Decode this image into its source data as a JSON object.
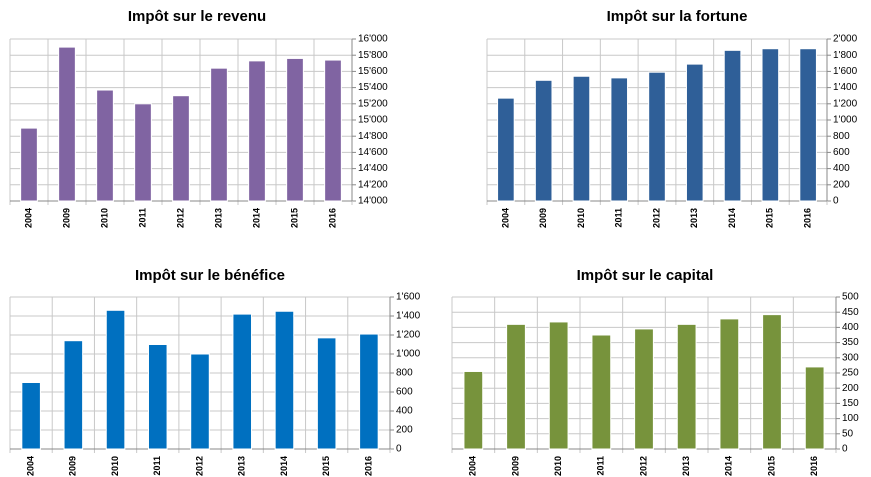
{
  "chart_data": [
    {
      "type": "bar",
      "title": "Impôt sur le revenu",
      "color": "#8064a2",
      "grid": true,
      "categories": [
        "2004",
        "2009",
        "2010",
        "2011",
        "2012",
        "2013",
        "2014",
        "2015",
        "2016"
      ],
      "values": [
        14900,
        15900,
        15370,
        15200,
        15300,
        15640,
        15730,
        15760,
        15740
      ],
      "ylim": [
        14000,
        16000
      ],
      "yticks": [
        {
          "value": 14000,
          "label": "14'000"
        },
        {
          "value": 14200,
          "label": "14'200"
        },
        {
          "value": 14400,
          "label": "14'400"
        },
        {
          "value": 14600,
          "label": "14'600"
        },
        {
          "value": 14800,
          "label": "14'800"
        },
        {
          "value": 15000,
          "label": "15'000"
        },
        {
          "value": 15200,
          "label": "15'200"
        },
        {
          "value": 15400,
          "label": "15'400"
        },
        {
          "value": 15600,
          "label": "15'600"
        },
        {
          "value": 15800,
          "label": "15'800"
        },
        {
          "value": 16000,
          "label": "16'000"
        }
      ]
    },
    {
      "type": "bar",
      "title": "Impôt sur la fortune",
      "color": "#2f5f98",
      "grid": true,
      "categories": [
        "2004",
        "2009",
        "2010",
        "2011",
        "2012",
        "2013",
        "2014",
        "2015",
        "2016"
      ],
      "values": [
        1270,
        1490,
        1540,
        1520,
        1590,
        1690,
        1860,
        1880,
        1880
      ],
      "ylim": [
        0,
        2000
      ],
      "yticks": [
        0,
        200,
        400,
        600,
        800,
        {
          "value": 1000,
          "label": "1'000"
        },
        {
          "value": 1200,
          "label": "1'200"
        },
        {
          "value": 1400,
          "label": "1'400"
        },
        {
          "value": 1600,
          "label": "1'600"
        },
        {
          "value": 1800,
          "label": "1'800"
        },
        {
          "value": 2000,
          "label": "2'000"
        }
      ]
    },
    {
      "type": "bar",
      "title": "Impôt sur le bénéfice",
      "color": "#0070c0",
      "grid": true,
      "categories": [
        "2004",
        "2009",
        "2010",
        "2011",
        "2012",
        "2013",
        "2014",
        "2015",
        "2016"
      ],
      "values": [
        700,
        1140,
        1460,
        1100,
        1000,
        1420,
        1450,
        1170,
        1210
      ],
      "ylim": [
        0,
        1600
      ],
      "yticks": [
        0,
        200,
        400,
        600,
        800,
        {
          "value": 1000,
          "label": "1'000"
        },
        {
          "value": 1200,
          "label": "1'200"
        },
        {
          "value": 1400,
          "label": "1'400"
        },
        {
          "value": 1600,
          "label": "1'600"
        }
      ]
    },
    {
      "type": "bar",
      "title": "Impôt sur le capital",
      "color": "#77933c",
      "grid": true,
      "categories": [
        "2004",
        "2009",
        "2010",
        "2011",
        "2012",
        "2013",
        "2014",
        "2015",
        "2016"
      ],
      "values": [
        255,
        410,
        418,
        375,
        395,
        410,
        428,
        442,
        270
      ],
      "ylim": [
        0,
        500
      ],
      "yticks": [
        0,
        50,
        100,
        150,
        200,
        250,
        300,
        350,
        400,
        450,
        500
      ]
    }
  ]
}
